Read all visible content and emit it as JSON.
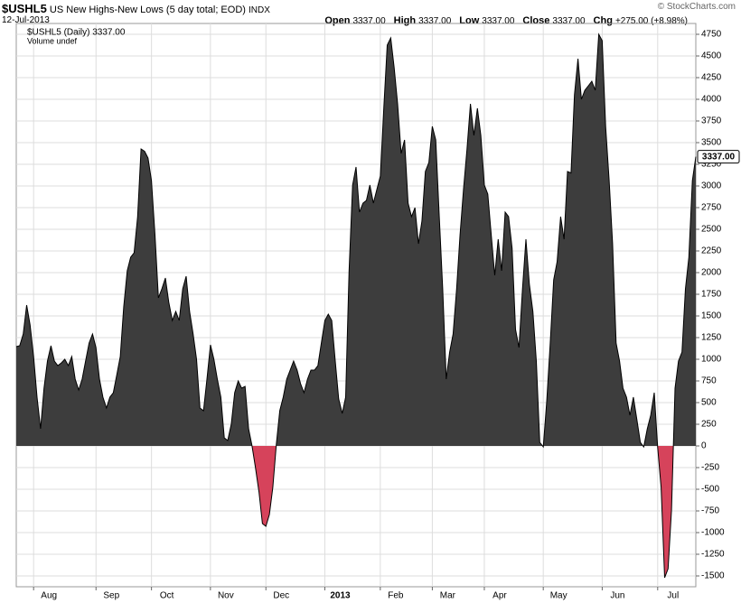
{
  "chart_data": {
    "type": "area",
    "title": "$USHL5",
    "subtitle": "US New Highs-New Lows (5 day total; EOD)",
    "exchange": "INDX",
    "date": "12-Jul-2013",
    "credit": "© StockCharts.com",
    "quote": [
      {
        "label": "Open",
        "value": "3337.00"
      },
      {
        "label": "High",
        "value": "3337.00"
      },
      {
        "label": "Low",
        "value": "3337.00"
      },
      {
        "label": "Close",
        "value": "3337.00"
      },
      {
        "label": "Chg",
        "value": "+275.00 (+8.98%)"
      }
    ],
    "legend": "$USHL5 (Daily) 3337.00",
    "volume_label": "Volume undef",
    "last_label": "3337.00",
    "color": "#3d3d3d",
    "negative_color": "#d6435b",
    "grid": true,
    "values": [
      1146,
      1156,
      1292,
      1625,
      1396,
      1031,
      563,
      198,
      667,
      979,
      1156,
      979,
      927,
      958,
      1000,
      927,
      1031,
      771,
      646,
      771,
      979,
      1188,
      1292,
      1135,
      771,
      563,
      438,
      563,
      615,
      823,
      1031,
      1604,
      2021,
      2177,
      2229,
      2646,
      3427,
      3400,
      3323,
      3063,
      2438,
      1708,
      1813,
      1938,
      1656,
      1448,
      1552,
      1448,
      1813,
      1958,
      1552,
      1292,
      1000,
      438,
      406,
      771,
      1167,
      1000,
      771,
      563,
      94,
      63,
      250,
      615,
      750,
      667,
      688,
      198,
      0,
      -250,
      -531,
      -896,
      -927,
      -792,
      -479,
      20,
      406,
      563,
      771,
      875,
      979,
      875,
      719,
      615,
      771,
      875,
      875,
      927,
      1188,
      1448,
      1521,
      1448,
      979,
      542,
      375,
      563,
      2021,
      3010,
      3219,
      2698,
      2802,
      2833,
      3010,
      2802,
      2958,
      3115,
      3896,
      4625,
      4708,
      4365,
      3948,
      3375,
      3531,
      2802,
      2646,
      2750,
      2333,
      2594,
      3167,
      3271,
      3688,
      3531,
      2646,
      1813,
      771,
      1083,
      1292,
      1813,
      2438,
      2958,
      3427,
      3948,
      3583,
      3896,
      3583,
      3010,
      2906,
      2438,
      1969,
      2385,
      2021,
      2698,
      2646,
      2281,
      1344,
      1135,
      1813,
      2385,
      1865,
      1552,
      979,
      42,
      -10,
      510,
      1188,
      1917,
      2125,
      2646,
      2385,
      3167,
      3150,
      4052,
      4469,
      4000,
      4104,
      4156,
      4208,
      4104,
      4750,
      4677,
      3688,
      3063,
      2333,
      1188,
      979,
      667,
      563,
      354,
      563,
      302,
      42,
      -10,
      198,
      354,
      615,
      -20,
      -479,
      -1521,
      -1417,
      -740,
      667,
      979,
      1083,
      1813,
      2177,
      3063,
      3337
    ],
    "xlim": [
      0,
      196
    ],
    "xticks": [
      {
        "value": 5,
        "label": "Aug"
      },
      {
        "value": 23,
        "label": "Sep"
      },
      {
        "value": 39,
        "label": "Oct"
      },
      {
        "value": 56,
        "label": "Nov"
      },
      {
        "value": 72,
        "label": "Dec"
      },
      {
        "value": 89,
        "label": "2013"
      },
      {
        "value": 105,
        "label": "Feb"
      },
      {
        "value": 120,
        "label": "Mar"
      },
      {
        "value": 135,
        "label": "Apr"
      },
      {
        "value": 152,
        "label": "May"
      },
      {
        "value": 169,
        "label": "Jun"
      },
      {
        "value": 185,
        "label": "Jul"
      }
    ],
    "ylim": [
      -1625,
      4875
    ],
    "yticks": [
      -1500,
      -1250,
      -1000,
      -750,
      -500,
      -250,
      0,
      250,
      500,
      750,
      1000,
      1250,
      1500,
      1750,
      2000,
      2250,
      2500,
      2750,
      3000,
      3250,
      3500,
      3750,
      4000,
      4250,
      4500,
      4750
    ]
  }
}
